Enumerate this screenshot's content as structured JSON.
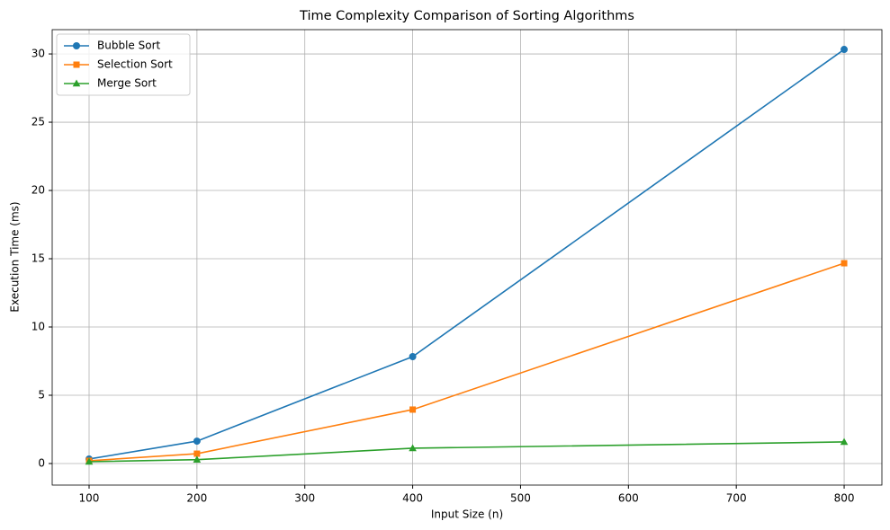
{
  "chart_data": {
    "type": "line",
    "title": "Time Complexity Comparison of Sorting Algorithms",
    "x_label": "Input Size (n)",
    "y_label": "Execution Time (ms)",
    "x": [
      100,
      200,
      400,
      800
    ],
    "series": [
      {
        "name": "Bubble Sort",
        "color": "#1f77b4",
        "marker": "circle",
        "values": [
          0.33,
          1.64,
          7.83,
          30.33
        ]
      },
      {
        "name": "Selection Sort",
        "color": "#ff7f0e",
        "marker": "square",
        "values": [
          0.2,
          0.72,
          3.95,
          14.67
        ]
      },
      {
        "name": "Merge Sort",
        "color": "#2ca02c",
        "marker": "triangle",
        "values": [
          0.13,
          0.28,
          1.12,
          1.58
        ]
      }
    ],
    "xlim": [
      65.8,
      835
    ],
    "ylim": [
      -1.58,
      31.78
    ],
    "xticks": [
      100,
      200,
      300,
      400,
      500,
      600,
      700,
      800
    ],
    "yticks": [
      0,
      5,
      10,
      15,
      20,
      25,
      30
    ],
    "grid": true,
    "legend": "upper-left"
  }
}
